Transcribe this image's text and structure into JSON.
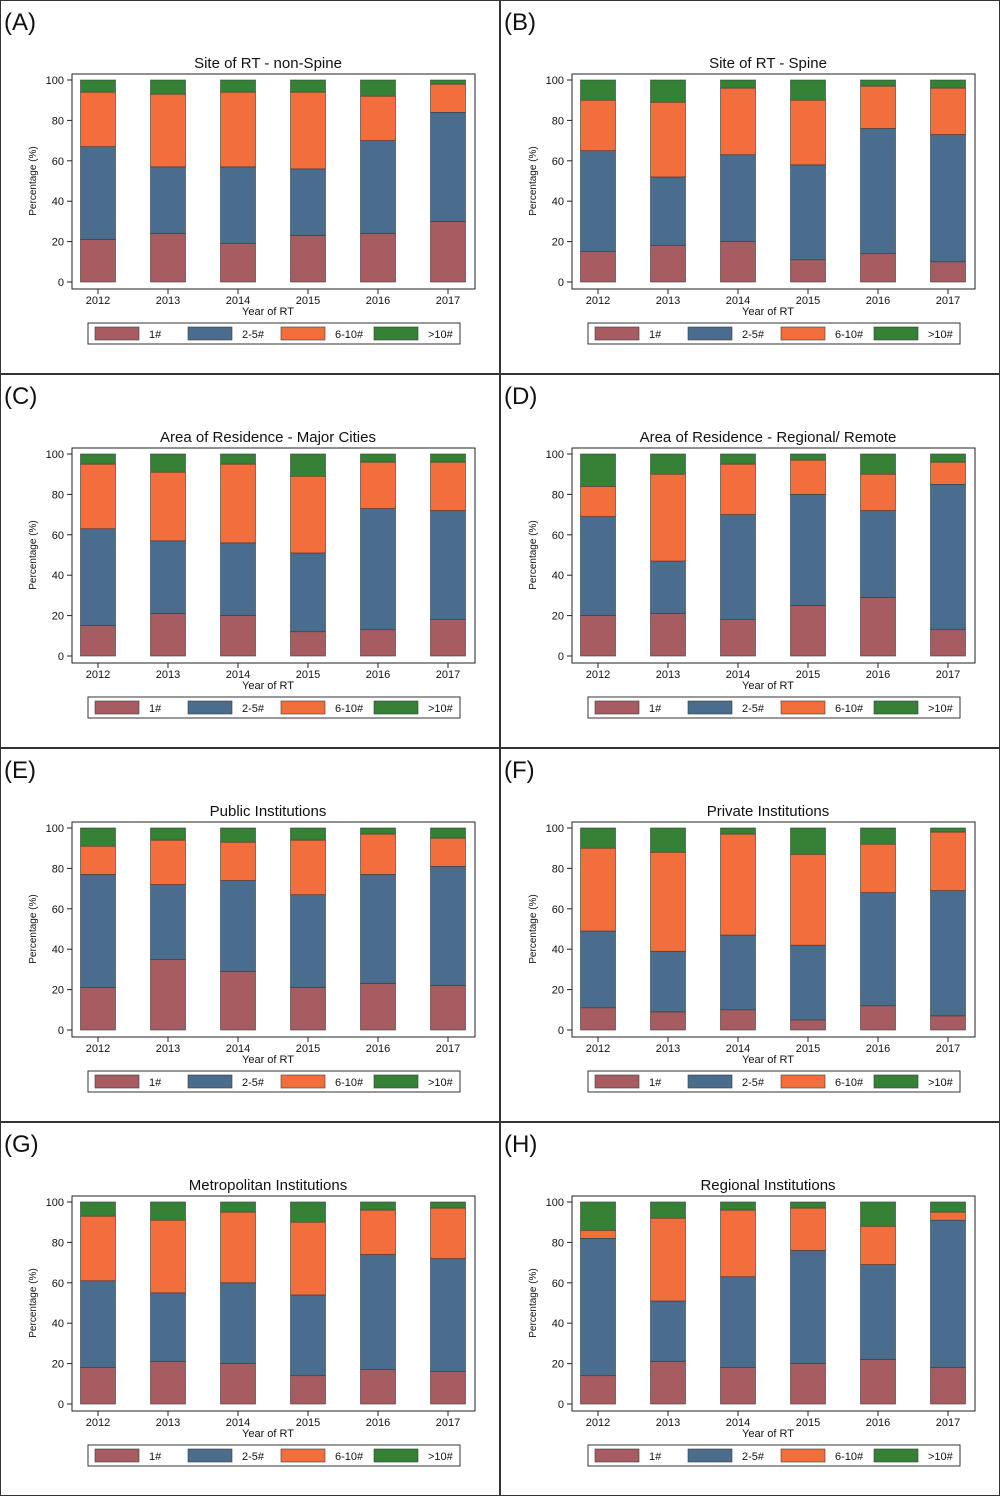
{
  "legend": [
    "1#",
    "2-5#",
    "6-10#",
    ">10#"
  ],
  "colors": [
    "#a65c61",
    "#4a6c8d",
    "#f26e3d",
    "#358237"
  ],
  "chart_data": [
    {
      "type": "bar",
      "panel_label": "(A)",
      "title": "Site of RT - non-Spine",
      "xlabel": "Year of RT",
      "ylabel": "Percentage (%)",
      "ylim": [
        0,
        100
      ],
      "yticks": [
        "0",
        "20",
        "40",
        "60",
        "80",
        "100"
      ],
      "stacked": true,
      "legend_position": "bottom",
      "categories": [
        "2012",
        "2013",
        "2014",
        "2015",
        "2016",
        "2017"
      ],
      "series": [
        {
          "name": "1#",
          "values": [
            21,
            24,
            19,
            23,
            24,
            30
          ]
        },
        {
          "name": "2-5#",
          "values": [
            46,
            33,
            38,
            33,
            46,
            54
          ]
        },
        {
          "name": "6-10#",
          "values": [
            27,
            36,
            37,
            38,
            22,
            14
          ]
        },
        {
          "name": ">10#",
          "values": [
            6,
            7,
            6,
            6,
            8,
            2
          ]
        }
      ]
    },
    {
      "type": "bar",
      "panel_label": "(B)",
      "title": "Site of RT - Spine",
      "xlabel": "Year of RT",
      "ylabel": "Percentage (%)",
      "ylim": [
        0,
        100
      ],
      "yticks": [
        "0",
        "20",
        "40",
        "60",
        "80",
        "100"
      ],
      "stacked": true,
      "legend_position": "bottom",
      "categories": [
        "2012",
        "2013",
        "2014",
        "2015",
        "2016",
        "2017"
      ],
      "series": [
        {
          "name": "1#",
          "values": [
            15,
            18,
            20,
            11,
            14,
            10
          ]
        },
        {
          "name": "2-5#",
          "values": [
            50,
            34,
            43,
            47,
            62,
            63
          ]
        },
        {
          "name": "6-10#",
          "values": [
            25,
            37,
            33,
            32,
            21,
            23
          ]
        },
        {
          "name": ">10#",
          "values": [
            10,
            11,
            4,
            10,
            3,
            4
          ]
        }
      ]
    },
    {
      "type": "bar",
      "panel_label": "(C)",
      "title": "Area of Residence - Major Cities",
      "xlabel": "Year of RT",
      "ylabel": "Percentage (%)",
      "ylim": [
        0,
        100
      ],
      "yticks": [
        "0",
        "20",
        "40",
        "60",
        "80",
        "100"
      ],
      "stacked": true,
      "legend_position": "bottom",
      "categories": [
        "2012",
        "2013",
        "2014",
        "2015",
        "2016",
        "2017"
      ],
      "series": [
        {
          "name": "1#",
          "values": [
            15,
            21,
            20,
            12,
            13,
            18
          ]
        },
        {
          "name": "2-5#",
          "values": [
            48,
            36,
            36,
            39,
            60,
            54
          ]
        },
        {
          "name": "6-10#",
          "values": [
            32,
            34,
            39,
            38,
            23,
            24
          ]
        },
        {
          "name": ">10#",
          "values": [
            5,
            9,
            5,
            11,
            4,
            4
          ]
        }
      ]
    },
    {
      "type": "bar",
      "panel_label": "(D)",
      "title": "Area of Residence - Regional/ Remote",
      "xlabel": "Year of RT",
      "ylabel": "Percentage (%)",
      "ylim": [
        0,
        100
      ],
      "yticks": [
        "0",
        "20",
        "40",
        "60",
        "80",
        "100"
      ],
      "stacked": true,
      "legend_position": "bottom",
      "categories": [
        "2012",
        "2013",
        "2014",
        "2015",
        "2016",
        "2017"
      ],
      "series": [
        {
          "name": "1#",
          "values": [
            20,
            21,
            18,
            25,
            29,
            13
          ]
        },
        {
          "name": "2-5#",
          "values": [
            49,
            26,
            52,
            55,
            43,
            72
          ]
        },
        {
          "name": "6-10#",
          "values": [
            15,
            43,
            25,
            17,
            18,
            11
          ]
        },
        {
          "name": ">10#",
          "values": [
            16,
            10,
            5,
            3,
            10,
            4
          ]
        }
      ]
    },
    {
      "type": "bar",
      "panel_label": "(E)",
      "title": "Public Institutions",
      "xlabel": "Year of RT",
      "ylabel": "Percentage (%)",
      "ylim": [
        0,
        100
      ],
      "yticks": [
        "0",
        "20",
        "40",
        "60",
        "80",
        "100"
      ],
      "stacked": true,
      "legend_position": "bottom",
      "categories": [
        "2012",
        "2013",
        "2014",
        "2015",
        "2016",
        "2017"
      ],
      "series": [
        {
          "name": "1#",
          "values": [
            21,
            35,
            29,
            21,
            23,
            22
          ]
        },
        {
          "name": "2-5#",
          "values": [
            56,
            37,
            45,
            46,
            54,
            59
          ]
        },
        {
          "name": "6-10#",
          "values": [
            14,
            22,
            19,
            27,
            20,
            14
          ]
        },
        {
          "name": ">10#",
          "values": [
            9,
            6,
            7,
            6,
            3,
            5
          ]
        }
      ]
    },
    {
      "type": "bar",
      "panel_label": "(F)",
      "title": "Private Institutions",
      "xlabel": "Year of RT",
      "ylabel": "Percentage (%)",
      "ylim": [
        0,
        100
      ],
      "yticks": [
        "0",
        "20",
        "40",
        "60",
        "80",
        "100"
      ],
      "stacked": true,
      "legend_position": "bottom",
      "categories": [
        "2012",
        "2013",
        "2014",
        "2015",
        "2016",
        "2017"
      ],
      "series": [
        {
          "name": "1#",
          "values": [
            11,
            9,
            10,
            5,
            12,
            7
          ]
        },
        {
          "name": "2-5#",
          "values": [
            38,
            30,
            37,
            37,
            56,
            62
          ]
        },
        {
          "name": "6-10#",
          "values": [
            41,
            49,
            50,
            45,
            24,
            29
          ]
        },
        {
          "name": ">10#",
          "values": [
            10,
            12,
            3,
            13,
            8,
            2
          ]
        }
      ]
    },
    {
      "type": "bar",
      "panel_label": "(G)",
      "title": "Metropolitan Institutions",
      "xlabel": "Year of RT",
      "ylabel": "Percentage (%)",
      "ylim": [
        0,
        100
      ],
      "yticks": [
        "0",
        "20",
        "40",
        "60",
        "80",
        "100"
      ],
      "stacked": true,
      "legend_position": "bottom",
      "categories": [
        "2012",
        "2013",
        "2014",
        "2015",
        "2016",
        "2017"
      ],
      "series": [
        {
          "name": "1#",
          "values": [
            18,
            21,
            20,
            14,
            17,
            16
          ]
        },
        {
          "name": "2-5#",
          "values": [
            43,
            34,
            40,
            40,
            57,
            56
          ]
        },
        {
          "name": "6-10#",
          "values": [
            32,
            36,
            35,
            36,
            22,
            25
          ]
        },
        {
          "name": ">10#",
          "values": [
            7,
            9,
            5,
            10,
            4,
            3
          ]
        }
      ]
    },
    {
      "type": "bar",
      "panel_label": "(H)",
      "title": "Regional Institutions",
      "xlabel": "Year of RT",
      "ylabel": "Percentage (%)",
      "ylim": [
        0,
        100
      ],
      "yticks": [
        "0",
        "20",
        "40",
        "60",
        "80",
        "100"
      ],
      "stacked": true,
      "legend_position": "bottom",
      "categories": [
        "2012",
        "2013",
        "2014",
        "2015",
        "2016",
        "2017"
      ],
      "series": [
        {
          "name": "1#",
          "values": [
            14,
            21,
            18,
            20,
            22,
            18
          ]
        },
        {
          "name": "2-5#",
          "values": [
            68,
            30,
            45,
            56,
            47,
            73
          ]
        },
        {
          "name": "6-10#",
          "values": [
            4,
            41,
            33,
            21,
            19,
            4
          ]
        },
        {
          "name": ">10#",
          "values": [
            14,
            8,
            4,
            3,
            12,
            5
          ]
        }
      ]
    }
  ]
}
